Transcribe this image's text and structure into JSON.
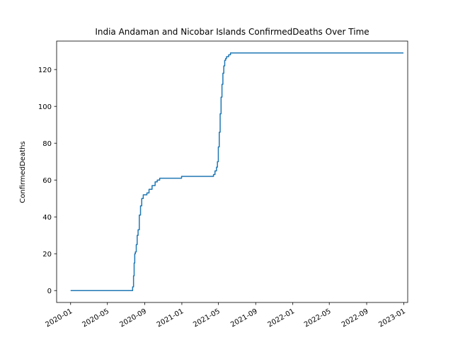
{
  "chart_data": {
    "type": "line",
    "title": "India Andaman and Nicobar Islands ConfirmedDeaths Over Time",
    "xlabel": "",
    "ylabel": "ConfirmedDeaths",
    "xlim": [
      "2019-11-16",
      "2023-01-14"
    ],
    "ylim": [
      -6.45,
      135.45
    ],
    "x_ticks": [
      "2020-01",
      "2020-05",
      "2020-09",
      "2021-01",
      "2021-05",
      "2021-09",
      "2022-01",
      "2022-05",
      "2022-09",
      "2023-01"
    ],
    "y_ticks": [
      0,
      20,
      40,
      60,
      80,
      100,
      120
    ],
    "grid": false,
    "legend": "none",
    "line_color": "#1f77b4",
    "series": [
      {
        "x": [
          "2020-01-01",
          "2020-07-21",
          "2020-07-23",
          "2020-07-26",
          "2020-07-28",
          "2020-07-30",
          "2020-08-01",
          "2020-08-04",
          "2020-08-07",
          "2020-08-10",
          "2020-08-14",
          "2020-08-18",
          "2020-08-22",
          "2020-08-27",
          "2020-09-02",
          "2020-09-08",
          "2020-09-15",
          "2020-09-25",
          "2020-10-05",
          "2020-10-12",
          "2020-10-20",
          "2020-10-30",
          "2020-11-10",
          "2020-12-01",
          "2020-12-31",
          "2021-01-20",
          "2021-03-01",
          "2021-04-10",
          "2021-04-15",
          "2021-04-20",
          "2021-04-25",
          "2021-04-28",
          "2021-05-01",
          "2021-05-04",
          "2021-05-07",
          "2021-05-10",
          "2021-05-13",
          "2021-05-16",
          "2021-05-19",
          "2021-05-22",
          "2021-05-25",
          "2021-05-28",
          "2021-05-31",
          "2021-06-04",
          "2021-06-10",
          "2021-06-18",
          "2021-06-28",
          "2021-07-10",
          "2021-08-01",
          "2022-01-01",
          "2022-12-31"
        ],
        "y": [
          0,
          0,
          2,
          8,
          15,
          20,
          21,
          25,
          30,
          33,
          41,
          46,
          50,
          52,
          52,
          53,
          55,
          57,
          59,
          60,
          61,
          61,
          61,
          61,
          62,
          62,
          62,
          62,
          63,
          65,
          67,
          70,
          78,
          86,
          96,
          105,
          112,
          118,
          122,
          125,
          126,
          127,
          127,
          128,
          129,
          129,
          129,
          129,
          129,
          129,
          129
        ]
      }
    ]
  }
}
